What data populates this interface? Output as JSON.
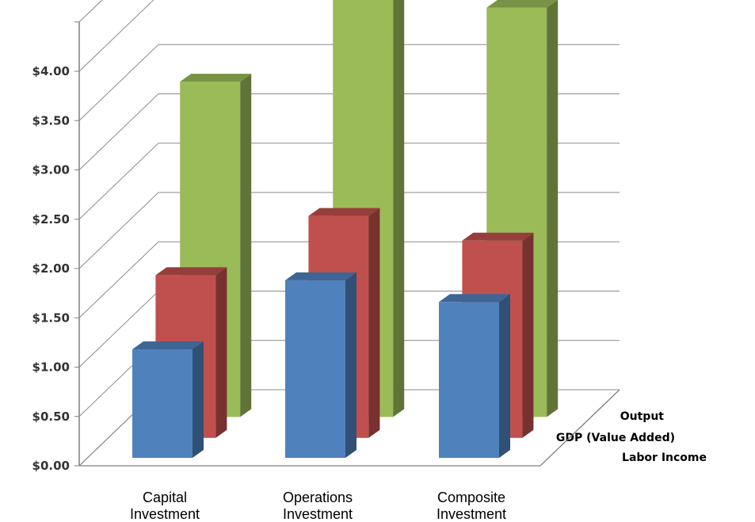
{
  "chart_data": {
    "type": "bar",
    "variant": "3d-clustered-column",
    "categories": [
      [
        "Capital",
        "Investment"
      ],
      [
        "Operations",
        "Investment"
      ],
      [
        "Composite",
        "Investment"
      ]
    ],
    "series": [
      {
        "name": "Labor Income",
        "values": [
          1.1,
          1.8,
          1.58
        ],
        "color": "#4f81bd"
      },
      {
        "name": "GDP (Value Added)",
        "values": [
          1.65,
          2.25,
          2.0
        ],
        "color": "#c0504d"
      },
      {
        "name": "Output",
        "values": [
          3.4,
          4.35,
          4.15
        ],
        "color": "#9bbb59"
      }
    ],
    "y_ticks": [
      "$0.00",
      "$0.50",
      "$1.00",
      "$1.50",
      "$2.00",
      "$2.50",
      "$3.00",
      "$3.50",
      "$4.00"
    ],
    "ylim": [
      0,
      4.5
    ],
    "grid": true,
    "legend": "none"
  }
}
